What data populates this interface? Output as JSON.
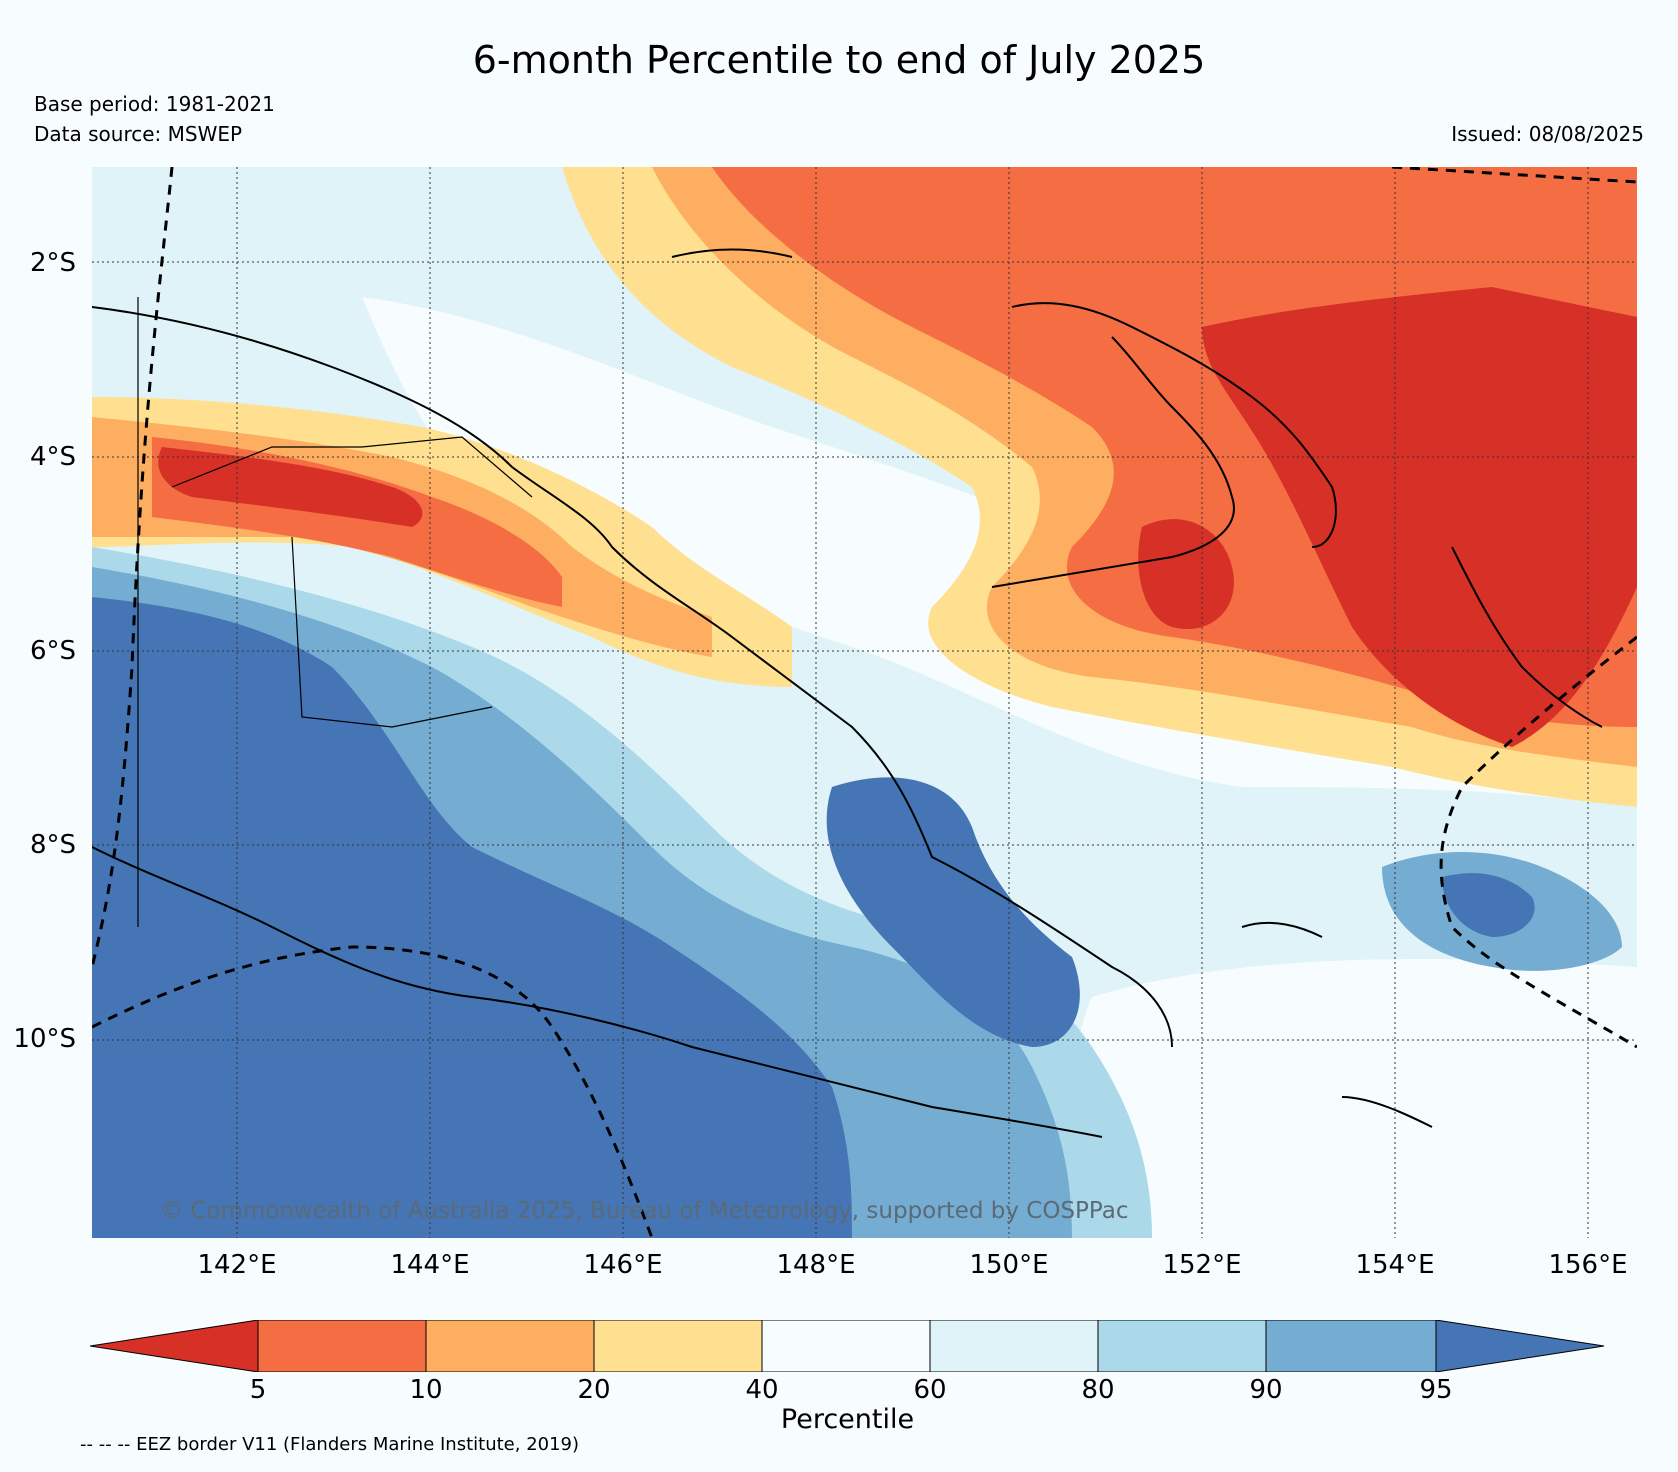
{
  "title": "6-month Percentile to end of July 2025",
  "base_period": "Base period: 1981-2021",
  "data_source": "Data source: MSWEP",
  "issued": "Issued: 08/08/2025",
  "copyright": "© Commonwealth of Australia 2025, Bureau of Meteorology, supported by COSPPac",
  "map": {
    "lat_labels": [
      "2°S",
      "4°S",
      "6°S",
      "8°S",
      "10°S"
    ],
    "lon_labels": [
      "142°E",
      "144°E",
      "146°E",
      "148°E",
      "150°E",
      "152°E",
      "154°E",
      "156°E"
    ],
    "lat_range": [
      -11.8,
      -1.0
    ],
    "lon_range": [
      140.3,
      156.5
    ]
  },
  "colorbar": {
    "label": "Percentile",
    "ticks": [
      "5",
      "10",
      "20",
      "40",
      "60",
      "80",
      "90",
      "95"
    ],
    "colors": {
      "below5": "#d73027",
      "5_10": "#f46d43",
      "10_20": "#fdae61",
      "20_40": "#fee090",
      "40_60": "#f7fdfe",
      "60_80": "#e0f3f8",
      "80_90": "#abd9e9",
      "90_95": "#74add1",
      "above95": "#4575b4"
    }
  },
  "eez_note": "-- -- -- EEZ border V11 (Flanders Marine Institute, 2019)"
}
